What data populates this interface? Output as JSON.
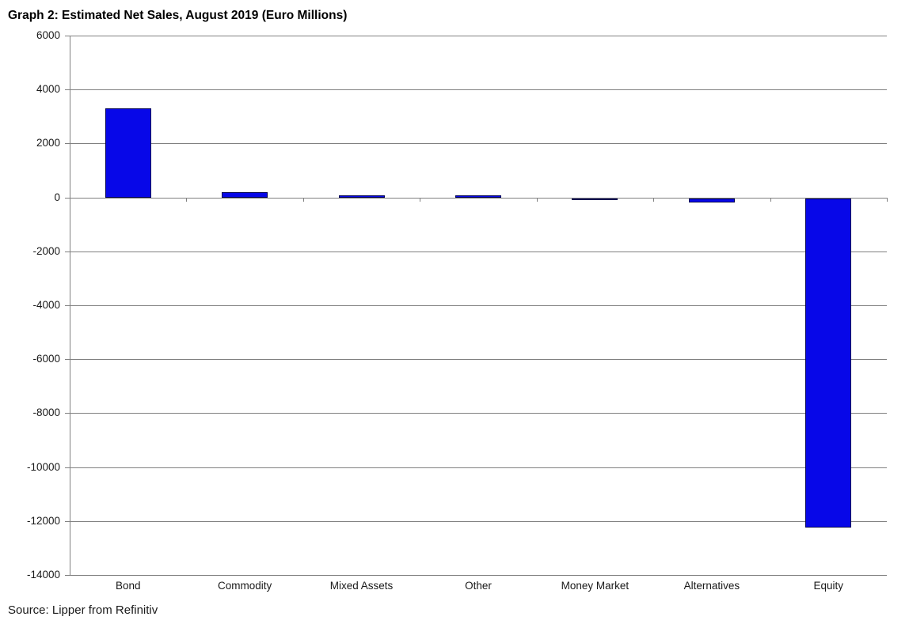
{
  "chart_data": {
    "type": "bar",
    "title": "Graph 2: Estimated Net Sales, August 2019 (Euro Millions)",
    "categories": [
      "Bond",
      "Commodity",
      "Mixed Assets",
      "Other",
      "Money Market",
      "Alternatives",
      "Equity"
    ],
    "values": [
      3300,
      200,
      70,
      90,
      -50,
      -150,
      -12200
    ],
    "xlabel": "",
    "ylabel": "",
    "ylim": [
      -14000,
      6000
    ],
    "yticks": [
      6000,
      4000,
      2000,
      0,
      -2000,
      -4000,
      -6000,
      -8000,
      -10000,
      -12000,
      -14000
    ],
    "grid": true,
    "legend": "none",
    "source": "Source: Lipper from Refinitiv",
    "colors": {
      "bar_fill": "#0707e8",
      "bar_border": "#000050",
      "gridline": "#808080",
      "axis_line": "#808080",
      "text": "#1a1a1a",
      "title_text": "#000000",
      "background": "#ffffff"
    }
  }
}
